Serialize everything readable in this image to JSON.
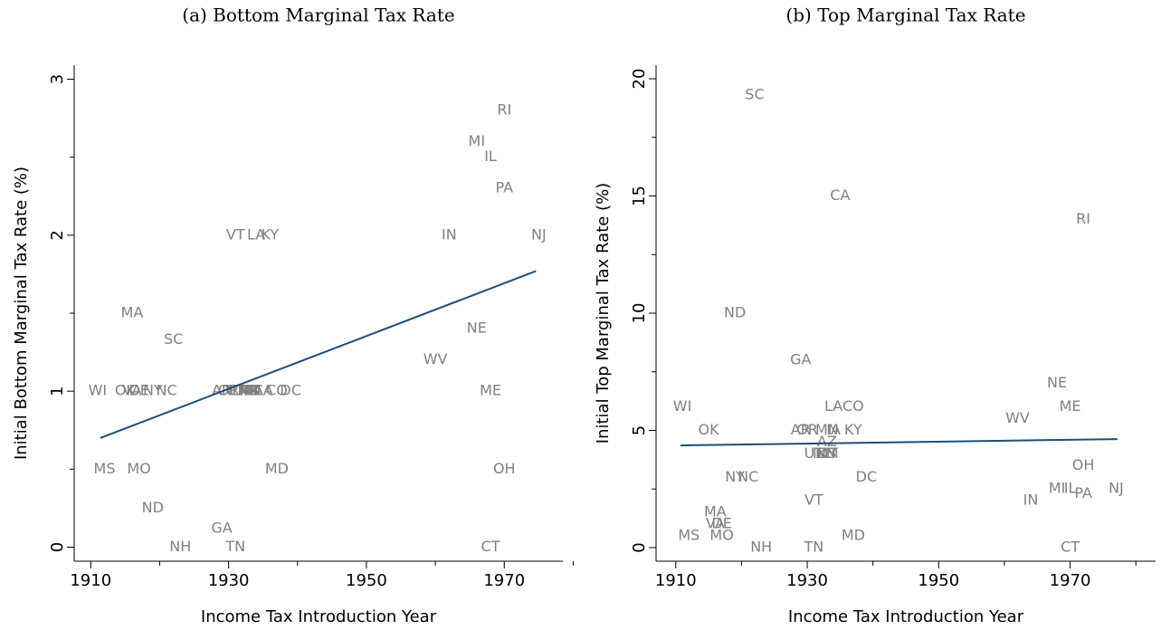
{
  "chart_data": [
    {
      "type": "scatter",
      "title": "(a) Bottom Marginal Tax Rate",
      "x_label": "Income Tax Introduction Year",
      "y_label": "Initial Bottom Marginal Tax Rate (%)",
      "xlim": [
        1907.6,
        1978.5
      ],
      "xticks": [
        1910,
        1930,
        1950,
        1970
      ],
      "xminor": [
        1920,
        1940,
        1960,
        1980
      ],
      "ylim": [
        -0.09,
        3.09
      ],
      "yticks": [
        0,
        1,
        2,
        3
      ],
      "yminor": [
        0.5,
        1.5,
        2.5
      ],
      "color": "#808080",
      "labels": [
        "RI",
        "MI",
        "IL",
        "PA",
        "IN",
        "NJ",
        "VT",
        "LA",
        "KY",
        "MA",
        "SC",
        "NE",
        "WV",
        "WI",
        "OK",
        "VA",
        "DE",
        "NY",
        "NC",
        "AR",
        "OR",
        "UT",
        "ID",
        "AZ",
        "MN",
        "MT",
        "KS",
        "NM",
        "IA",
        "CA",
        "CO",
        "DC",
        "ME",
        "MS",
        "MO",
        "MD",
        "OH",
        "ND",
        "GA",
        "NH",
        "TN",
        "CT"
      ],
      "x": [
        1970,
        1966,
        1968,
        1970,
        1962,
        1975,
        1931,
        1934,
        1936,
        1916,
        1922,
        1966,
        1960,
        1911,
        1915,
        1916,
        1917,
        1919,
        1921,
        1929,
        1930,
        1931,
        1931,
        1933,
        1933,
        1933,
        1933,
        1933,
        1934,
        1935,
        1937,
        1939,
        1968,
        1912,
        1917,
        1937,
        1970,
        1919,
        1929,
        1923,
        1931,
        1968
      ],
      "values": [
        2.8,
        2.6,
        2.5,
        2.3,
        2,
        2,
        2,
        2,
        2,
        1.5,
        1.33,
        1.4,
        1.2,
        1,
        1,
        1,
        1,
        1,
        1,
        1,
        1,
        1,
        1,
        1,
        1,
        1,
        1,
        1,
        1,
        1,
        1,
        1,
        1,
        0.5,
        0.5,
        0.5,
        0.5,
        0.25,
        0.12,
        0,
        0,
        0
      ],
      "fit": {
        "x": [
          1911.4,
          1974.6
        ],
        "values": [
          0.7,
          1.77
        ],
        "color": "#1f4e79"
      }
    },
    {
      "type": "scatter",
      "title": "(b) Top Marginal Tax Rate",
      "x_label": "Income Tax Introduction Year",
      "y_label": "Initial Top Marginal Tax Rate (%)",
      "xlim": [
        1907,
        1983
      ],
      "xticks": [
        1910,
        1930,
        1950,
        1970
      ],
      "xminor": [
        1920,
        1940,
        1960,
        1980
      ],
      "ylim": [
        -0.58,
        20.58
      ],
      "yticks": [
        0,
        5,
        10,
        15,
        20
      ],
      "yminor": [
        2.5,
        7.5,
        12.5,
        17.5
      ],
      "color": "#808080",
      "labels": [
        "SC",
        "CA",
        "RI",
        "ND",
        "GA",
        "NE",
        "WI",
        "LA",
        "CO",
        "ME",
        "WV",
        "OK",
        "AR",
        "OR",
        "MN",
        "IA",
        "KY",
        "AZ",
        "UT",
        "ID",
        "MT",
        "KS",
        "NM",
        "OH",
        "NY",
        "NC",
        "DC",
        "MI",
        "IL",
        "PA",
        "NJ",
        "VT",
        "IN",
        "MA",
        "VA",
        "DE",
        "MS",
        "MO",
        "MD",
        "NH",
        "TN",
        "CT"
      ],
      "x": [
        1922,
        1935,
        1972,
        1919,
        1929,
        1968,
        1911,
        1934,
        1937,
        1970,
        1962,
        1915,
        1929,
        1930,
        1933,
        1934,
        1937,
        1933,
        1931,
        1932,
        1933,
        1933,
        1933,
        1972,
        1919,
        1921,
        1939,
        1968,
        1970,
        1972,
        1977,
        1931,
        1964,
        1916,
        1916,
        1917,
        1912,
        1917,
        1937,
        1923,
        1931,
        1970
      ],
      "values": [
        19.3,
        15,
        14,
        10,
        8,
        7,
        6,
        6,
        6,
        6,
        5.5,
        5,
        5,
        5,
        5,
        5,
        5,
        4.5,
        4,
        4,
        4,
        4,
        4,
        3.5,
        3,
        3,
        3,
        2.5,
        2.5,
        2.3,
        2.5,
        2,
        2,
        1.5,
        1,
        1,
        0.5,
        0.5,
        0.5,
        0,
        0,
        0
      ],
      "fit": {
        "x": [
          1910.7,
          1977.2
        ],
        "values": [
          4.36,
          4.63
        ],
        "color": "#1f4e79"
      }
    }
  ]
}
